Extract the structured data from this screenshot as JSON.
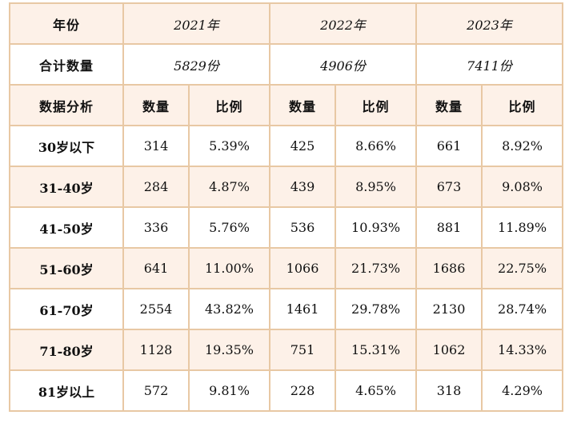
{
  "header": {
    "year_label": "年份",
    "years": [
      "2021年",
      "2022年",
      "2023年"
    ]
  },
  "totals": {
    "label": "合计数量",
    "values": [
      "5829份",
      "4906份",
      "7411份"
    ]
  },
  "subheader": {
    "label": "数据分析",
    "count_label": "数量",
    "ratio_label": "比例"
  },
  "rows": [
    {
      "label": "30岁以下",
      "values": [
        "314",
        "5.39%",
        "425",
        "8.66%",
        "661",
        "8.92%"
      ]
    },
    {
      "label": "31-40岁",
      "values": [
        "284",
        "4.87%",
        "439",
        "8.95%",
        "673",
        "9.08%"
      ]
    },
    {
      "label": "41-50岁",
      "values": [
        "336",
        "5.76%",
        "536",
        "10.93%",
        "881",
        "11.89%"
      ]
    },
    {
      "label": "51-60岁",
      "values": [
        "641",
        "11.00%",
        "1066",
        "21.73%",
        "1686",
        "22.75%"
      ]
    },
    {
      "label": "61-70岁",
      "values": [
        "2554",
        "43.82%",
        "1461",
        "29.78%",
        "2130",
        "28.74%"
      ]
    },
    {
      "label": "71-80岁",
      "values": [
        "1128",
        "19.35%",
        "751",
        "15.31%",
        "1062",
        "14.33%"
      ]
    },
    {
      "label": "81岁以上",
      "values": [
        "572",
        "9.81%",
        "228",
        "4.65%",
        "318",
        "4.29%"
      ]
    }
  ],
  "colors": {
    "border": "#e8c8a4",
    "shade": "#fdf1e8"
  }
}
